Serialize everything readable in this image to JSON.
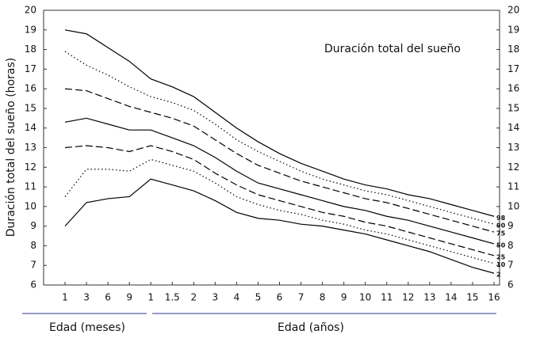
{
  "chart_data": {
    "type": "line",
    "title": "Duración total del sueño",
    "y_label": "Duración total del sueño (horas)",
    "x_groups": [
      "Edad (meses)",
      "Edad (años)"
    ],
    "categories": [
      "1",
      "3",
      "6",
      "9",
      "1",
      "1.5",
      "2",
      "3",
      "4",
      "5",
      "6",
      "7",
      "8",
      "9",
      "10",
      "11",
      "12",
      "13",
      "14",
      "15",
      "16"
    ],
    "ylim": [
      6,
      20
    ],
    "yticks": [
      6,
      7,
      8,
      9,
      10,
      11,
      12,
      13,
      14,
      15,
      16,
      17,
      18,
      19,
      20
    ],
    "y2ticks": [
      6,
      7,
      8,
      9,
      10,
      11,
      12,
      13,
      14,
      15,
      16,
      17,
      18,
      19,
      20
    ],
    "series": [
      {
        "name": "98",
        "color": "#000",
        "dash": "solid",
        "values": [
          19,
          18.8,
          18.1,
          17.4,
          16.5,
          16.1,
          15.6,
          14.8,
          14.0,
          13.3,
          12.7,
          12.2,
          11.8,
          11.4,
          11.1,
          10.9,
          10.6,
          10.4,
          10.1,
          9.8,
          9.5
        ]
      },
      {
        "name": "90",
        "color": "#000",
        "dash": "dotted",
        "values": [
          17.9,
          17.2,
          16.7,
          16.1,
          15.6,
          15.3,
          14.9,
          14.2,
          13.4,
          12.8,
          12.3,
          11.8,
          11.4,
          11.1,
          10.8,
          10.6,
          10.3,
          10.0,
          9.7,
          9.4,
          9.1
        ]
      },
      {
        "name": "75",
        "color": "#000",
        "dash": "dashed",
        "values": [
          16.0,
          15.9,
          15.5,
          15.1,
          14.8,
          14.5,
          14.1,
          13.4,
          12.7,
          12.1,
          11.7,
          11.3,
          11.0,
          10.7,
          10.4,
          10.2,
          9.9,
          9.6,
          9.3,
          9.0,
          8.7
        ]
      },
      {
        "name": "50",
        "color": "#000",
        "dash": "solid",
        "values": [
          14.3,
          14.5,
          14.2,
          13.9,
          13.9,
          13.5,
          13.1,
          12.5,
          11.8,
          11.2,
          10.9,
          10.6,
          10.3,
          10.0,
          9.8,
          9.5,
          9.3,
          9.0,
          8.7,
          8.4,
          8.1
        ]
      },
      {
        "name": "25",
        "color": "#000",
        "dash": "dashed",
        "values": [
          13.0,
          13.1,
          13.0,
          12.8,
          13.1,
          12.8,
          12.4,
          11.7,
          11.1,
          10.6,
          10.3,
          10.0,
          9.7,
          9.5,
          9.2,
          9.0,
          8.7,
          8.4,
          8.1,
          7.8,
          7.5
        ]
      },
      {
        "name": "10",
        "color": "#000",
        "dash": "dotted",
        "values": [
          10.5,
          11.9,
          11.9,
          11.8,
          12.4,
          12.1,
          11.8,
          11.2,
          10.5,
          10.1,
          9.8,
          9.6,
          9.3,
          9.1,
          8.8,
          8.6,
          8.3,
          8.0,
          7.7,
          7.4,
          7.1
        ]
      },
      {
        "name": "2",
        "color": "#000",
        "dash": "solid",
        "values": [
          9.0,
          10.2,
          10.4,
          10.5,
          11.4,
          11.1,
          10.8,
          10.3,
          9.7,
          9.4,
          9.3,
          9.1,
          9.0,
          8.8,
          8.6,
          8.3,
          8.0,
          7.7,
          7.3,
          6.9,
          6.6
        ]
      }
    ]
  }
}
